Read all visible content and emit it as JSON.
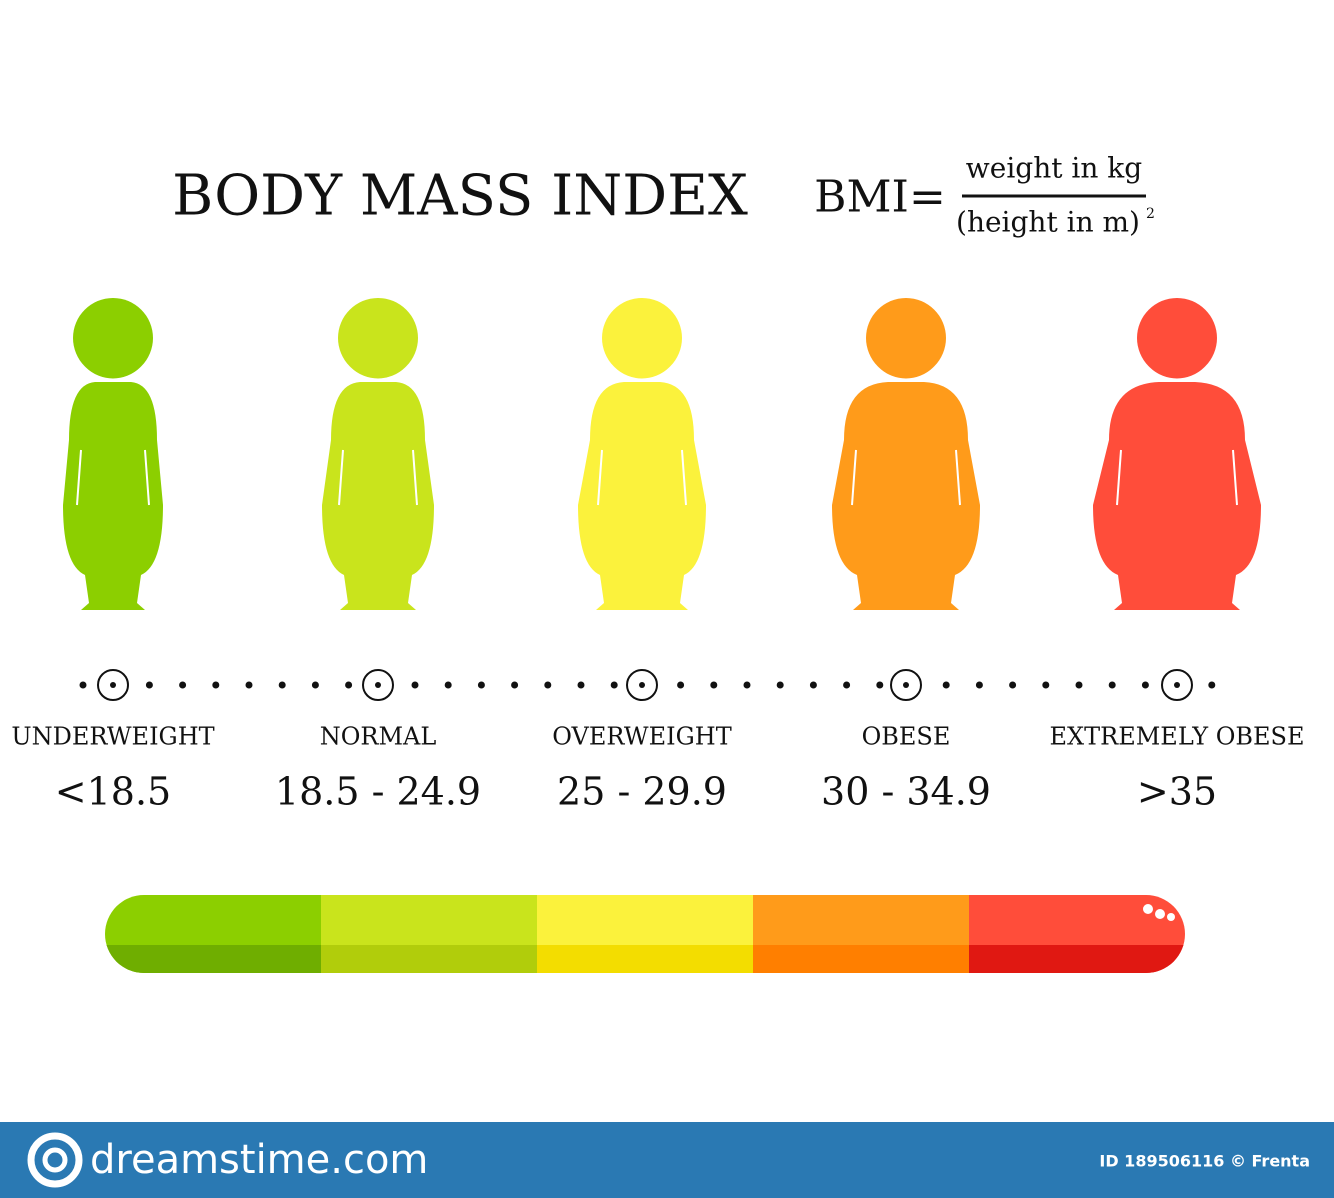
{
  "header": {
    "title": "BODY MASS INDEX",
    "formula": {
      "lhs": "BMI=",
      "numerator": "weight in kg",
      "denominator": "(height in m)",
      "exponent": "2"
    }
  },
  "categories": [
    {
      "label": "UNDERWEIGHT",
      "range": "<18.5"
    },
    {
      "label": "NORMAL",
      "range": "18.5 - 24.9"
    },
    {
      "label": "OVERWEIGHT",
      "range": "25 - 29.9"
    },
    {
      "label": "OBESE",
      "range": "30 - 34.9"
    },
    {
      "label": "EXTREMELY OBESE",
      "range": ">35"
    }
  ],
  "footer": {
    "brand": "dreamstime.com",
    "credit": "ID 189506116 © Frenta"
  }
}
